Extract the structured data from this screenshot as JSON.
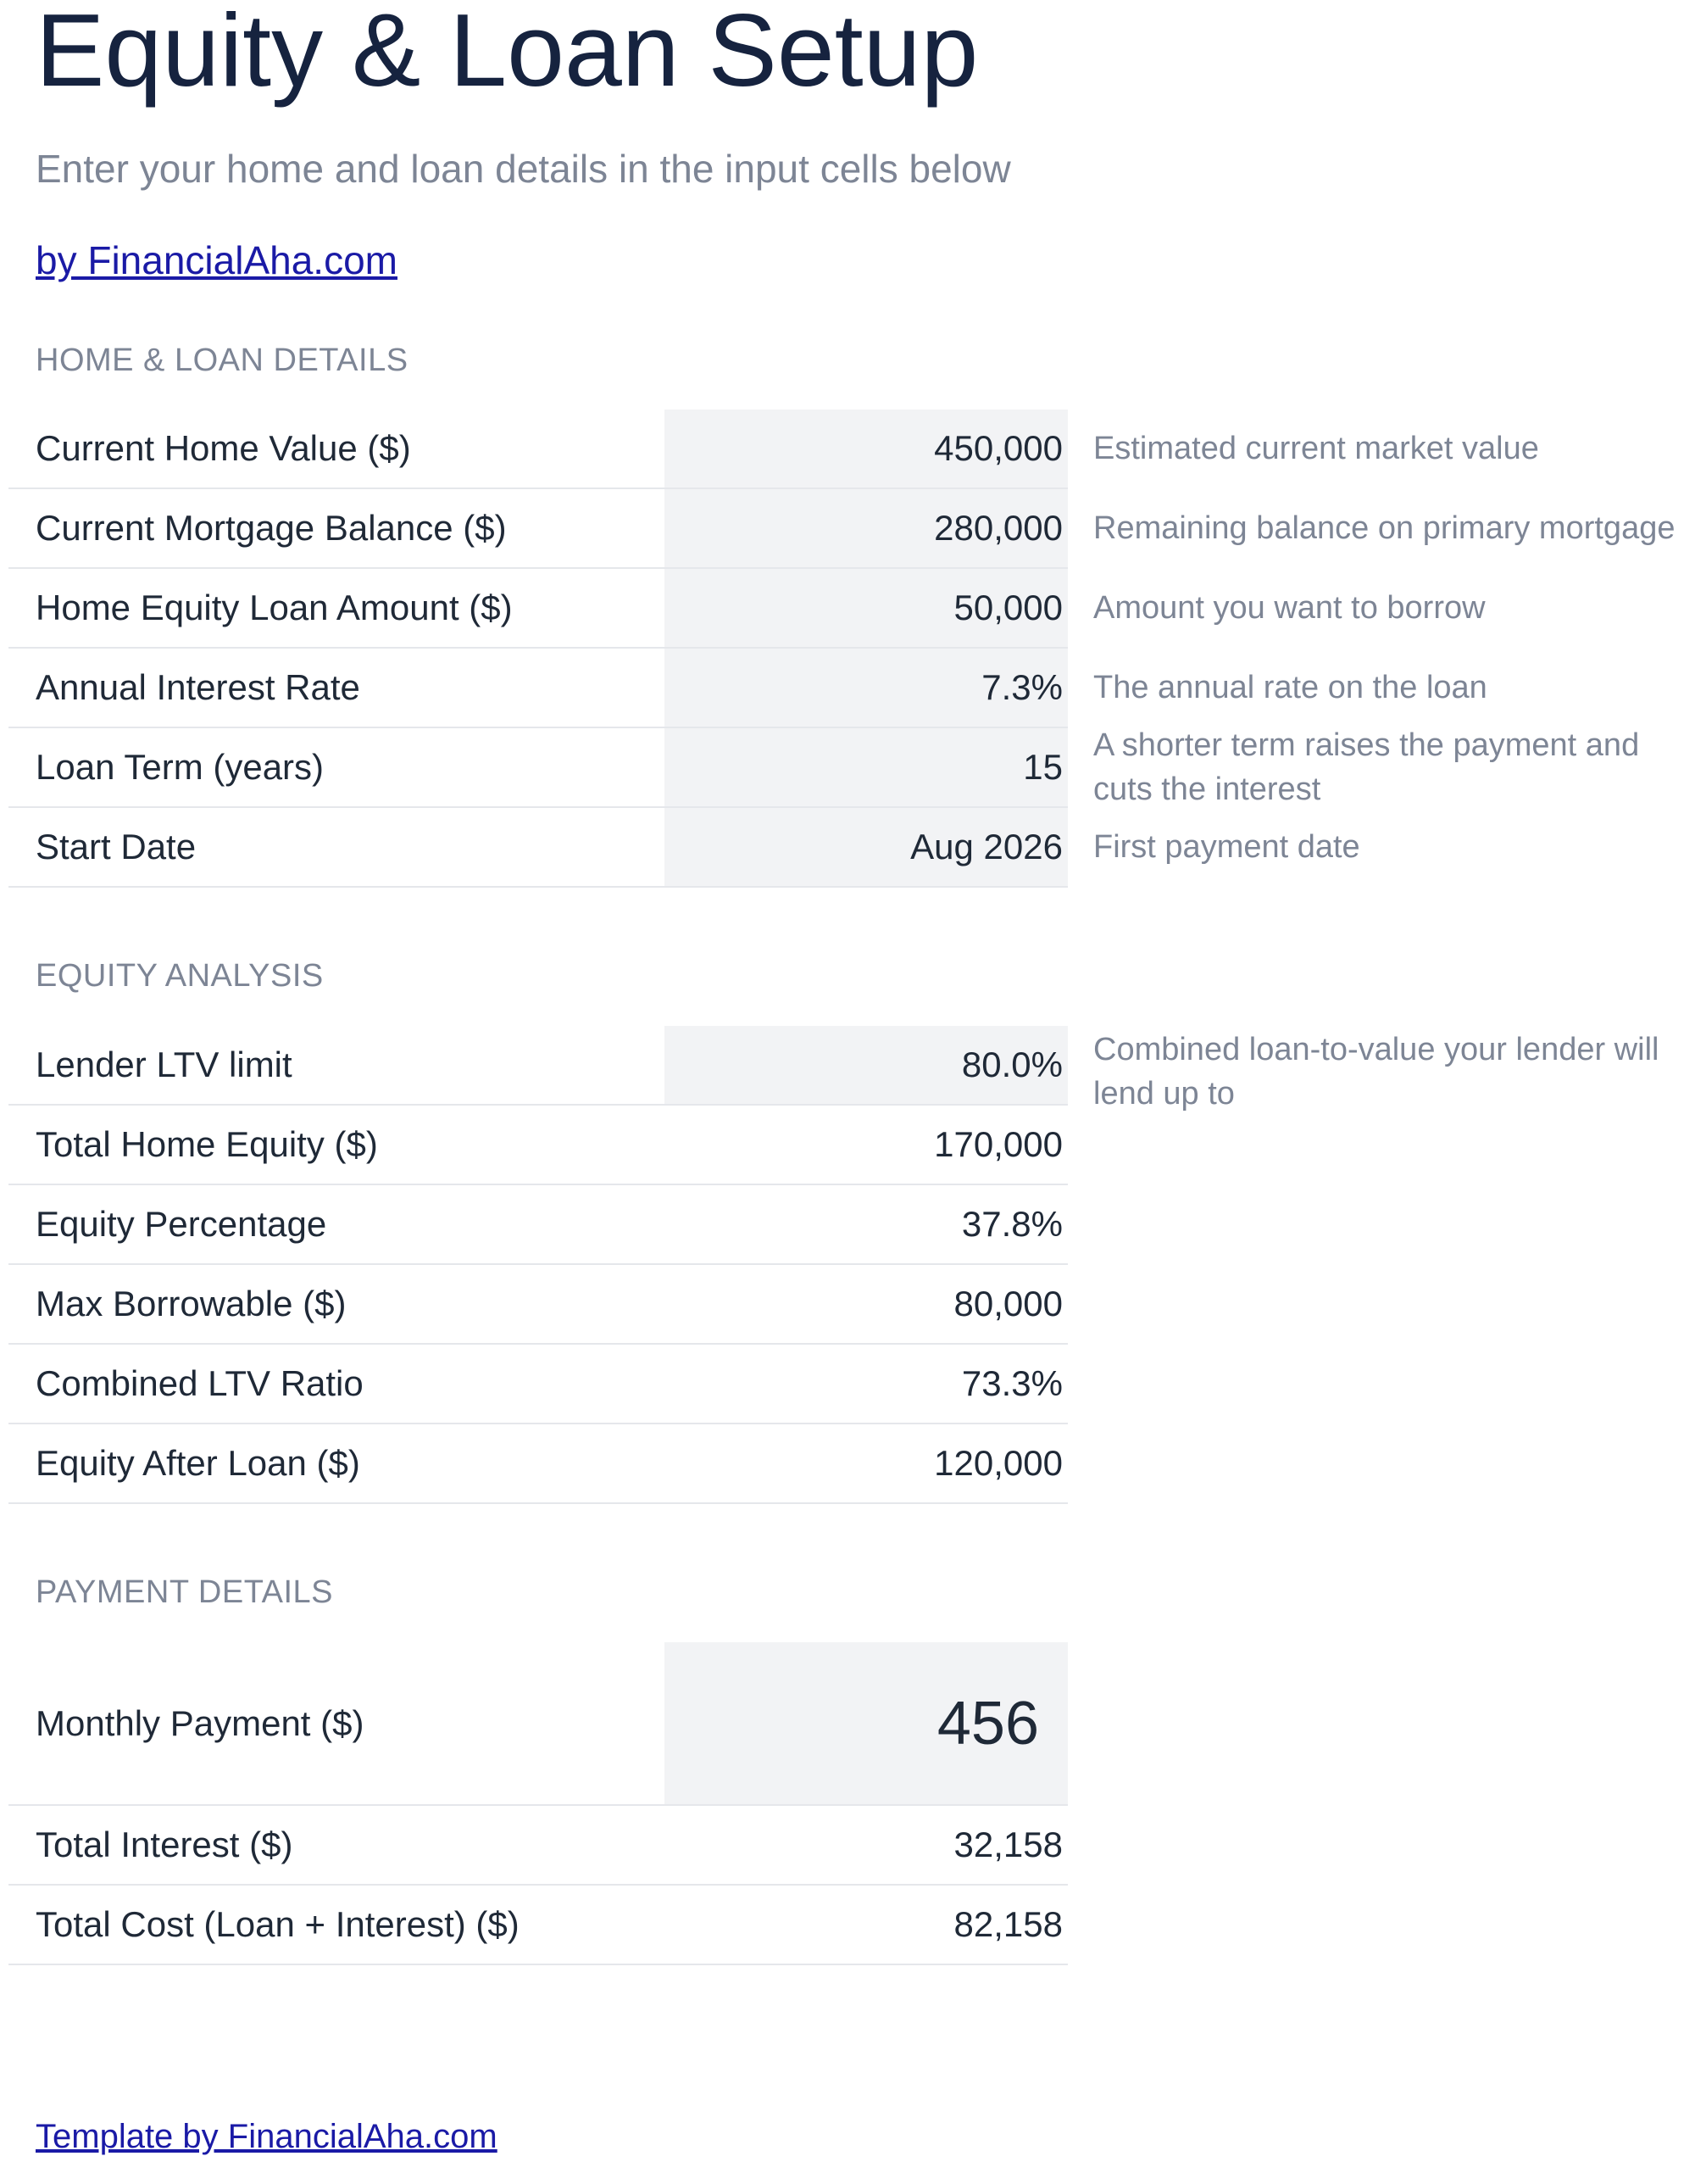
{
  "header": {
    "title": "Equity & Loan Setup",
    "subtitle": "Enter your home and loan details in the input cells below",
    "byline": "by FinancialAha.com"
  },
  "home_loan": {
    "heading": "HOME & LOAN DETAILS",
    "rows": [
      {
        "label": "Current Home Value ($)",
        "value": "450,000",
        "note": "Estimated current market value"
      },
      {
        "label": "Current Mortgage Balance ($)",
        "value": "280,000",
        "note": "Remaining balance on primary mortgage"
      },
      {
        "label": "Home Equity Loan Amount ($)",
        "value": "50,000",
        "note": "Amount you want to borrow"
      },
      {
        "label": "Annual Interest Rate",
        "value": "7.3%",
        "note": "The annual rate on the loan"
      },
      {
        "label": "Loan Term (years)",
        "value": "15",
        "note": "A shorter term raises the payment and cuts the interest"
      },
      {
        "label": "Start Date",
        "value": "Aug 2026",
        "note": "First payment date"
      }
    ]
  },
  "equity_analysis": {
    "heading": "EQUITY ANALYSIS",
    "rows": [
      {
        "label": "Lender LTV limit",
        "value": "80.0%",
        "note": "Combined loan-to-value your lender will lend up to"
      },
      {
        "label": "Total Home Equity ($)",
        "value": "170,000"
      },
      {
        "label": "Equity Percentage",
        "value": "37.8%"
      },
      {
        "label": "Max Borrowable ($)",
        "value": "80,000"
      },
      {
        "label": "Combined LTV Ratio",
        "value": "73.3%"
      },
      {
        "label": "Equity After Loan ($)",
        "value": "120,000"
      }
    ]
  },
  "payment_details": {
    "heading": "PAYMENT DETAILS",
    "rows": [
      {
        "label": "Monthly Payment ($)",
        "value": "456"
      },
      {
        "label": "Total Interest ($)",
        "value": "32,158"
      },
      {
        "label": "Total Cost (Loan + Interest) ($)",
        "value": "82,158"
      }
    ]
  },
  "footer": {
    "link": "Template by FinancialAha.com"
  },
  "colors": {
    "title": "#16233f",
    "muted_text": "#7d8595",
    "input_cell_bg": "#f2f3f5",
    "link": "#1a1aa6",
    "row_divider": "#e5e7eb"
  }
}
